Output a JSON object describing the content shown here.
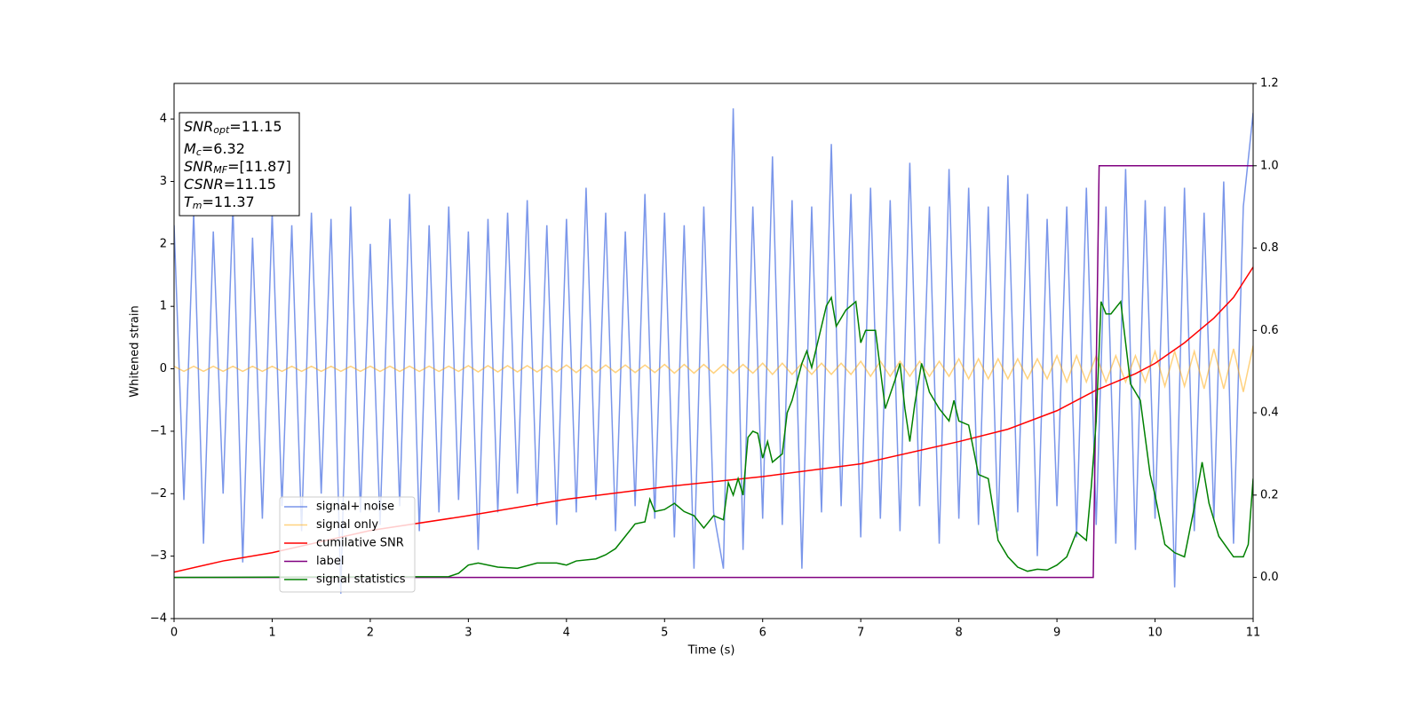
{
  "chart_data": {
    "type": "line",
    "xlabel": "Time (s)",
    "ylabel": "Whitened strain",
    "xlim": [
      0,
      11
    ],
    "xticks": [
      0,
      1,
      2,
      3,
      4,
      5,
      6,
      7,
      8,
      9,
      10,
      11
    ],
    "ylim": [
      -4,
      4.57
    ],
    "yticks": [
      {
        "value": -4,
        "label": "−4"
      },
      {
        "value": -3,
        "label": "−3"
      },
      {
        "value": -2,
        "label": "−2"
      },
      {
        "value": -1,
        "label": "−1"
      },
      0,
      1,
      2,
      3,
      4
    ],
    "y2lim": [
      -0.1,
      1.2
    ],
    "y2ticks": [
      {
        "value": 0,
        "label": "0.0"
      },
      0.2,
      0.4,
      0.6,
      0.8,
      {
        "value": 1,
        "label": "1.0"
      },
      1.2
    ],
    "legend": "lower left",
    "annotations": [
      {
        "name": "SNR",
        "sub": "opt",
        "text": "=11.15"
      },
      {
        "name": "M",
        "sub": "c",
        "text": "=6.32"
      },
      {
        "name": "SNR",
        "sub": "MF",
        "text": "=[11.87]"
      },
      {
        "name": "CSNR",
        "text": "=11.15"
      },
      {
        "name": "T",
        "sub": "m",
        "text": "=11.37"
      }
    ],
    "x": [
      0,
      0.1,
      0.2,
      0.3,
      0.4,
      0.5,
      0.6,
      0.7,
      0.8,
      0.9,
      1,
      1.1,
      1.2,
      1.3,
      1.4,
      1.5,
      1.6,
      1.7,
      1.8,
      1.9,
      2,
      2.1,
      2.2,
      2.3,
      2.4,
      2.5,
      2.6,
      2.7,
      2.8,
      2.9,
      3,
      3.1,
      3.2,
      3.3,
      3.4,
      3.5,
      3.6,
      3.7,
      3.8,
      3.9,
      4,
      4.1,
      4.2,
      4.3,
      4.4,
      4.5,
      4.6,
      4.7,
      4.8,
      4.9,
      5,
      5.1,
      5.2,
      5.3,
      5.4,
      5.5,
      5.6,
      5.7,
      5.8,
      5.9,
      6,
      6.1,
      6.2,
      6.3,
      6.4,
      6.5,
      6.6,
      6.7,
      6.8,
      6.9,
      7,
      7.1,
      7.2,
      7.3,
      7.4,
      7.5,
      7.6,
      7.7,
      7.8,
      7.9,
      8,
      8.1,
      8.2,
      8.3,
      8.4,
      8.5,
      8.6,
      8.7,
      8.8,
      8.9,
      9,
      9.1,
      9.2,
      9.3,
      9.4,
      9.5,
      9.6,
      9.7,
      9.8,
      9.9,
      10,
      10.1,
      10.2,
      10.3,
      10.4,
      10.5,
      10.6,
      10.7,
      10.8,
      10.9,
      11
    ],
    "series": [
      {
        "name": "signal+ noise",
        "color": "#4169e1",
        "opacity": 0.7,
        "values": [
          2.3,
          -2.1,
          2.5,
          -2.8,
          2.2,
          -2.0,
          2.6,
          -3.1,
          2.1,
          -2.4,
          2.5,
          -2.2,
          2.3,
          -2.6,
          2.5,
          -2.0,
          2.4,
          -3.6,
          2.6,
          -2.3,
          2.0,
          -2.5,
          2.4,
          -2.2,
          2.8,
          -2.6,
          2.3,
          -2.3,
          2.6,
          -2.1,
          2.2,
          -2.9,
          2.4,
          -2.3,
          2.5,
          -2.0,
          2.7,
          -2.2,
          2.3,
          -2.5,
          2.4,
          -2.3,
          2.9,
          -2.1,
          2.5,
          -2.6,
          2.2,
          -2.2,
          2.8,
          -2.4,
          2.5,
          -2.7,
          2.3,
          -3.2,
          2.6,
          -2.3,
          -3.2,
          4.17,
          -2.9,
          2.6,
          -2.4,
          3.4,
          -2.5,
          2.7,
          -3.2,
          2.6,
          -2.3,
          3.6,
          -2.2,
          2.8,
          -2.7,
          2.9,
          -2.4,
          2.7,
          -2.6,
          3.3,
          -2.2,
          2.6,
          -2.8,
          3.2,
          -2.4,
          2.9,
          -2.5,
          2.6,
          -2.6,
          3.1,
          -2.3,
          2.8,
          -3.0,
          2.4,
          -2.2,
          2.6,
          -2.7,
          2.9,
          -2.5,
          2.6,
          -2.8,
          3.2,
          -2.9,
          2.7,
          -2.4,
          2.6,
          -3.5,
          2.9,
          -2.6,
          2.5,
          -2.4,
          3.0,
          -2.8,
          2.6,
          4.1
        ]
      },
      {
        "name": "signal only",
        "color": "#ffa500",
        "opacity": 0.5,
        "values": [
          0.04,
          -0.04,
          0.04,
          -0.04,
          0.04,
          -0.04,
          0.04,
          -0.04,
          0.04,
          -0.04,
          0.04,
          -0.04,
          0.04,
          -0.04,
          0.04,
          -0.04,
          0.04,
          -0.04,
          0.04,
          -0.04,
          0.042,
          -0.042,
          0.042,
          -0.042,
          0.042,
          -0.042,
          0.042,
          -0.042,
          0.042,
          -0.042,
          0.05,
          -0.05,
          0.05,
          -0.05,
          0.05,
          -0.05,
          0.05,
          -0.05,
          0.05,
          -0.05,
          0.06,
          -0.06,
          0.06,
          -0.06,
          0.06,
          -0.06,
          0.06,
          -0.06,
          0.06,
          -0.06,
          0.07,
          -0.07,
          0.07,
          -0.07,
          0.07,
          -0.07,
          0.07,
          -0.07,
          0.07,
          -0.07,
          0.09,
          -0.09,
          0.09,
          -0.09,
          0.09,
          -0.09,
          0.09,
          -0.09,
          0.09,
          -0.09,
          0.12,
          -0.12,
          0.12,
          -0.12,
          0.12,
          -0.12,
          0.12,
          -0.12,
          0.12,
          -0.12,
          0.16,
          -0.16,
          0.16,
          -0.16,
          0.16,
          -0.16,
          0.16,
          -0.16,
          0.16,
          -0.16,
          0.21,
          -0.21,
          0.21,
          -0.21,
          0.21,
          -0.21,
          0.21,
          -0.21,
          0.21,
          -0.21,
          0.28,
          -0.28,
          0.28,
          -0.28,
          0.28,
          -0.32,
          0.32,
          -0.32,
          0.32,
          -0.37,
          0.37
        ]
      },
      {
        "name": "cumilative SNR",
        "color": "#ff0000",
        "axis": "y2",
        "x": [
          0,
          0.5,
          1,
          2,
          3,
          4,
          5,
          6,
          7,
          8,
          8.5,
          9,
          9.4,
          9.8,
          10,
          10.3,
          10.6,
          10.8,
          11
        ],
        "values": [
          0.013,
          0.04,
          0.06,
          0.114,
          0.15,
          0.19,
          0.22,
          0.245,
          0.276,
          0.33,
          0.36,
          0.405,
          0.455,
          0.495,
          0.52,
          0.57,
          0.63,
          0.68,
          0.754
        ]
      },
      {
        "name": "label",
        "color": "#800080",
        "axis": "y2",
        "x": [
          0,
          9.37,
          9.43,
          11
        ],
        "values": [
          0,
          0,
          1,
          1
        ]
      },
      {
        "name": "signal statistics",
        "color": "#008000",
        "axis": "y2",
        "x": [
          0,
          2.8,
          2.9,
          3.0,
          3.1,
          3.3,
          3.5,
          3.7,
          3.9,
          4.0,
          4.1,
          4.3,
          4.4,
          4.5,
          4.6,
          4.7,
          4.8,
          4.85,
          4.9,
          5.0,
          5.1,
          5.2,
          5.3,
          5.4,
          5.5,
          5.6,
          5.65,
          5.7,
          5.75,
          5.8,
          5.85,
          5.9,
          5.95,
          6.0,
          6.05,
          6.1,
          6.2,
          6.25,
          6.3,
          6.4,
          6.45,
          6.5,
          6.55,
          6.65,
          6.7,
          6.75,
          6.8,
          6.85,
          6.95,
          7.0,
          7.05,
          7.15,
          7.25,
          7.35,
          7.4,
          7.45,
          7.5,
          7.55,
          7.62,
          7.7,
          7.8,
          7.9,
          7.95,
          8.0,
          8.1,
          8.2,
          8.3,
          8.4,
          8.5,
          8.6,
          8.7,
          8.8,
          8.9,
          9.0,
          9.1,
          9.2,
          9.3,
          9.35,
          9.4,
          9.45,
          9.5,
          9.55,
          9.65,
          9.75,
          9.85,
          9.95,
          10.0,
          10.1,
          10.2,
          10.3,
          10.4,
          10.48,
          10.55,
          10.65,
          10.8,
          10.9,
          10.95,
          11.0
        ],
        "values": [
          0,
          0.002,
          0.01,
          0.03,
          0.035,
          0.025,
          0.022,
          0.035,
          0.035,
          0.03,
          0.04,
          0.045,
          0.055,
          0.07,
          0.1,
          0.13,
          0.135,
          0.19,
          0.16,
          0.165,
          0.18,
          0.16,
          0.15,
          0.12,
          0.15,
          0.14,
          0.23,
          0.2,
          0.24,
          0.2,
          0.34,
          0.355,
          0.35,
          0.29,
          0.33,
          0.28,
          0.3,
          0.4,
          0.43,
          0.52,
          0.55,
          0.51,
          0.56,
          0.66,
          0.68,
          0.61,
          0.63,
          0.65,
          0.67,
          0.57,
          0.6,
          0.6,
          0.41,
          0.48,
          0.52,
          0.41,
          0.33,
          0.42,
          0.52,
          0.45,
          0.41,
          0.38,
          0.43,
          0.38,
          0.37,
          0.25,
          0.24,
          0.09,
          0.05,
          0.025,
          0.015,
          0.02,
          0.018,
          0.03,
          0.05,
          0.11,
          0.09,
          0.22,
          0.38,
          0.67,
          0.64,
          0.64,
          0.67,
          0.47,
          0.43,
          0.25,
          0.2,
          0.08,
          0.06,
          0.05,
          0.17,
          0.28,
          0.18,
          0.1,
          0.05,
          0.05,
          0.08,
          0.24
        ]
      }
    ]
  }
}
